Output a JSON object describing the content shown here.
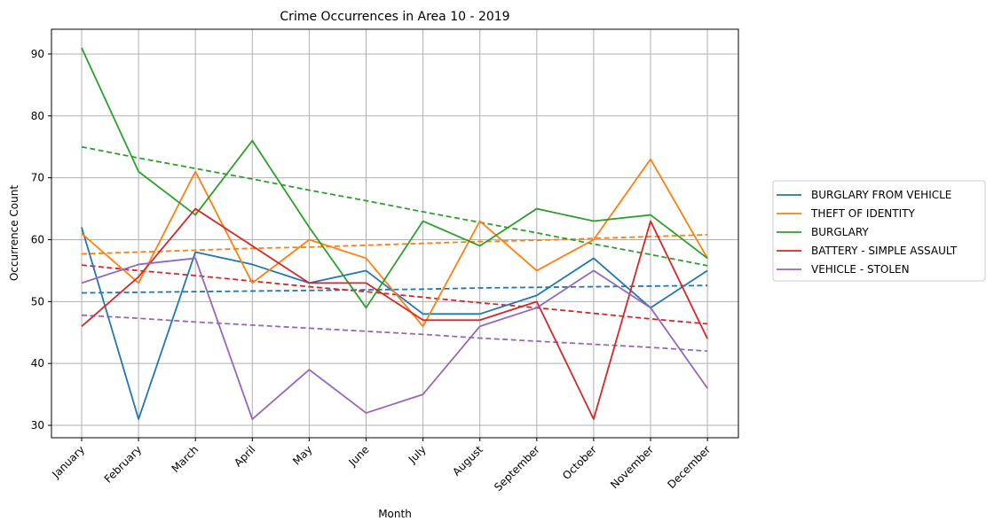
{
  "chart_data": {
    "type": "line",
    "title": "Crime Occurrences in Area 10 - 2019",
    "xlabel": "Month",
    "ylabel": "Occurrence Count",
    "categories": [
      "January",
      "February",
      "March",
      "April",
      "May",
      "June",
      "July",
      "August",
      "September",
      "October",
      "November",
      "December"
    ],
    "ylim": [
      28,
      94
    ],
    "yticks": [
      30,
      40,
      50,
      60,
      70,
      80,
      90
    ],
    "grid": true,
    "legend_position": "outside-right",
    "series": [
      {
        "name": "BURGLARY FROM VEHICLE",
        "color": "#1f77b4",
        "values": [
          62,
          31,
          58,
          56,
          53,
          55,
          48,
          48,
          51,
          57,
          49,
          55
        ],
        "trend": [
          51.4,
          51.5,
          51.6,
          51.7,
          51.8,
          51.9,
          52.0,
          52.2,
          52.3,
          52.4,
          52.5,
          52.6
        ]
      },
      {
        "name": "THEFT OF IDENTITY",
        "color": "#ff7f0e",
        "values": [
          61,
          53,
          71,
          53,
          60,
          57,
          46,
          63,
          55,
          60,
          73,
          57
        ],
        "trend": [
          57.7,
          58.0,
          58.3,
          58.6,
          58.8,
          59.1,
          59.4,
          59.7,
          59.9,
          60.2,
          60.5,
          60.8
        ]
      },
      {
        "name": "BURGLARY",
        "color": "#2ca02c",
        "values": [
          91,
          71,
          64,
          76,
          62,
          49,
          63,
          59,
          65,
          63,
          64,
          57
        ],
        "trend": [
          75.0,
          73.2,
          71.5,
          69.8,
          68.0,
          66.3,
          64.5,
          62.8,
          61.1,
          59.3,
          57.6,
          55.8
        ]
      },
      {
        "name": "BATTERY - SIMPLE ASSAULT",
        "color": "#d62728",
        "values": [
          46,
          54,
          65,
          59,
          53,
          53,
          47,
          47,
          50,
          31,
          63,
          44
        ],
        "trend": [
          55.9,
          55.0,
          54.2,
          53.3,
          52.4,
          51.6,
          50.7,
          49.8,
          49.0,
          48.1,
          47.2,
          46.4
        ]
      },
      {
        "name": "VEHICLE - STOLEN",
        "color": "#9467bd",
        "values": [
          53,
          56,
          57,
          31,
          39,
          32,
          35,
          46,
          49,
          55,
          49,
          36
        ],
        "trend": [
          47.8,
          47.3,
          46.7,
          46.2,
          45.7,
          45.2,
          44.7,
          44.1,
          43.6,
          43.1,
          42.6,
          42.0
        ]
      }
    ]
  }
}
